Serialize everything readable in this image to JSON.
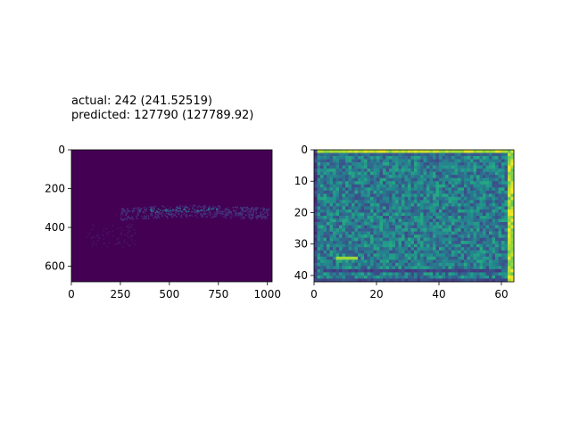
{
  "figure": {
    "title_line1": "actual: 242 (241.52519)",
    "title_line2": "predicted: 127790 (127789.92)"
  },
  "chart_data": [
    {
      "type": "heatmap",
      "colormap": "viridis",
      "background_color": "#440154",
      "xlim": [
        0,
        1024
      ],
      "ylim": [
        680,
        0
      ],
      "xticks": [
        "0",
        "250",
        "500",
        "750",
        "1000"
      ],
      "xtick_values": [
        0,
        250,
        500,
        750,
        1000
      ],
      "yticks": [
        "0",
        "200",
        "400",
        "600"
      ],
      "ytick_values": [
        0,
        200,
        400,
        600
      ],
      "band": {
        "x_range": [
          250,
          1024
        ],
        "y_center": 320,
        "y_spread": 45
      }
    },
    {
      "type": "heatmap",
      "colormap": "viridis",
      "rows": 42,
      "cols": 64,
      "xlim": [
        0,
        64
      ],
      "ylim": [
        42,
        0
      ],
      "xticks": [
        "0",
        "20",
        "40",
        "60"
      ],
      "xtick_values": [
        0,
        20,
        40,
        60
      ],
      "yticks": [
        "0",
        "10",
        "20",
        "30",
        "40"
      ],
      "ytick_values": [
        0,
        10,
        20,
        30,
        40
      ]
    }
  ]
}
